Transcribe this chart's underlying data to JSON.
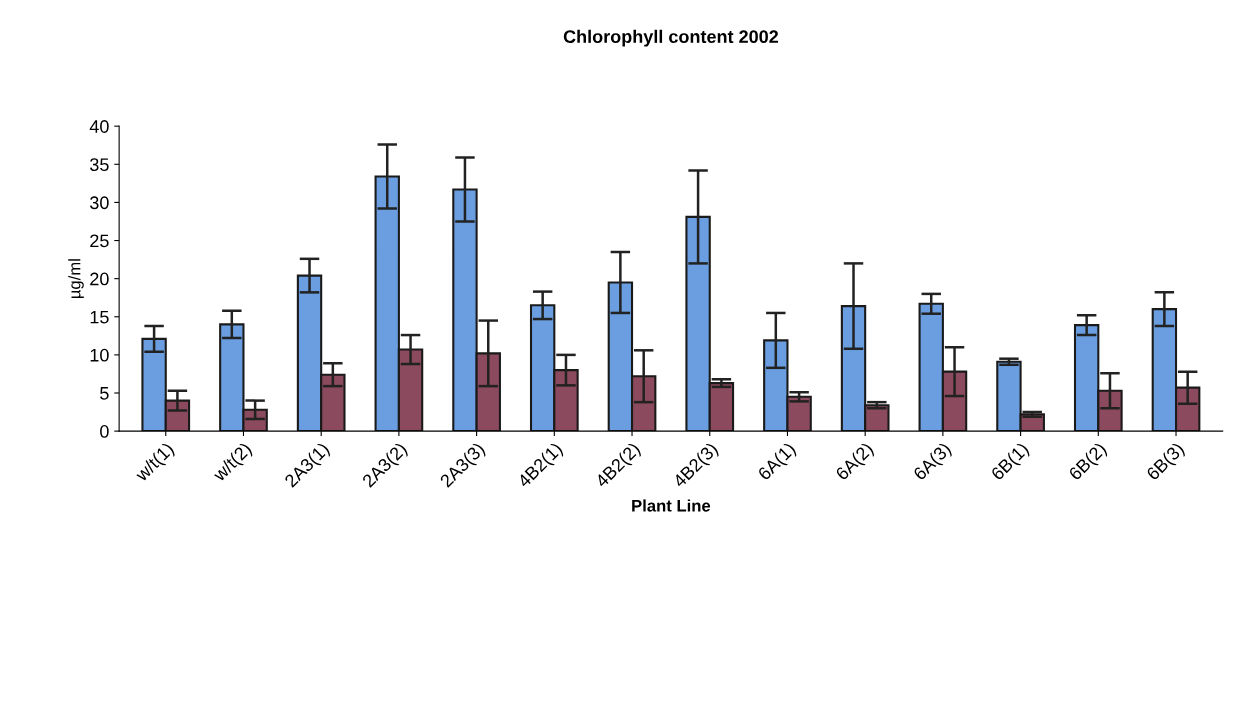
{
  "chart_data": {
    "type": "bar",
    "title": "Chlorophyll content 2002",
    "xlabel": "Plant Line",
    "ylabel": "µg/ml",
    "categories": [
      "w/t(1)",
      "w/t(2)",
      "2A3(1)",
      "2A3(2)",
      "2A3(3)",
      "4B2(1)",
      "4B2(2)",
      "4B2(3)",
      "6A(1)",
      "6A(2)",
      "6A(3)",
      "6B(1)",
      "6B(2)",
      "6B(3)"
    ],
    "series": [
      {
        "color": "#6a9ee0",
        "values": [
          12.1,
          14.0,
          20.4,
          33.4,
          31.7,
          16.5,
          19.5,
          28.1,
          11.9,
          16.4,
          16.7,
          9.1,
          13.9,
          16.0
        ],
        "errors": [
          1.7,
          1.8,
          2.2,
          4.2,
          4.2,
          1.8,
          4.0,
          6.1,
          3.6,
          5.6,
          1.3,
          0.4,
          1.3,
          2.2
        ]
      },
      {
        "color": "#8b4a5e",
        "values": [
          4.0,
          2.8,
          7.4,
          10.7,
          10.2,
          8.0,
          7.2,
          6.3,
          4.5,
          3.4,
          7.8,
          2.2,
          5.3,
          5.7
        ],
        "errors": [
          1.3,
          1.2,
          1.5,
          1.9,
          4.3,
          2.0,
          3.4,
          0.5,
          0.6,
          0.4,
          3.2,
          0.3,
          2.3,
          2.1
        ]
      }
    ],
    "ylim": [
      0,
      40
    ],
    "yticks": [
      0,
      5,
      10,
      15,
      20,
      25,
      30,
      35,
      40
    ],
    "grid": false
  }
}
